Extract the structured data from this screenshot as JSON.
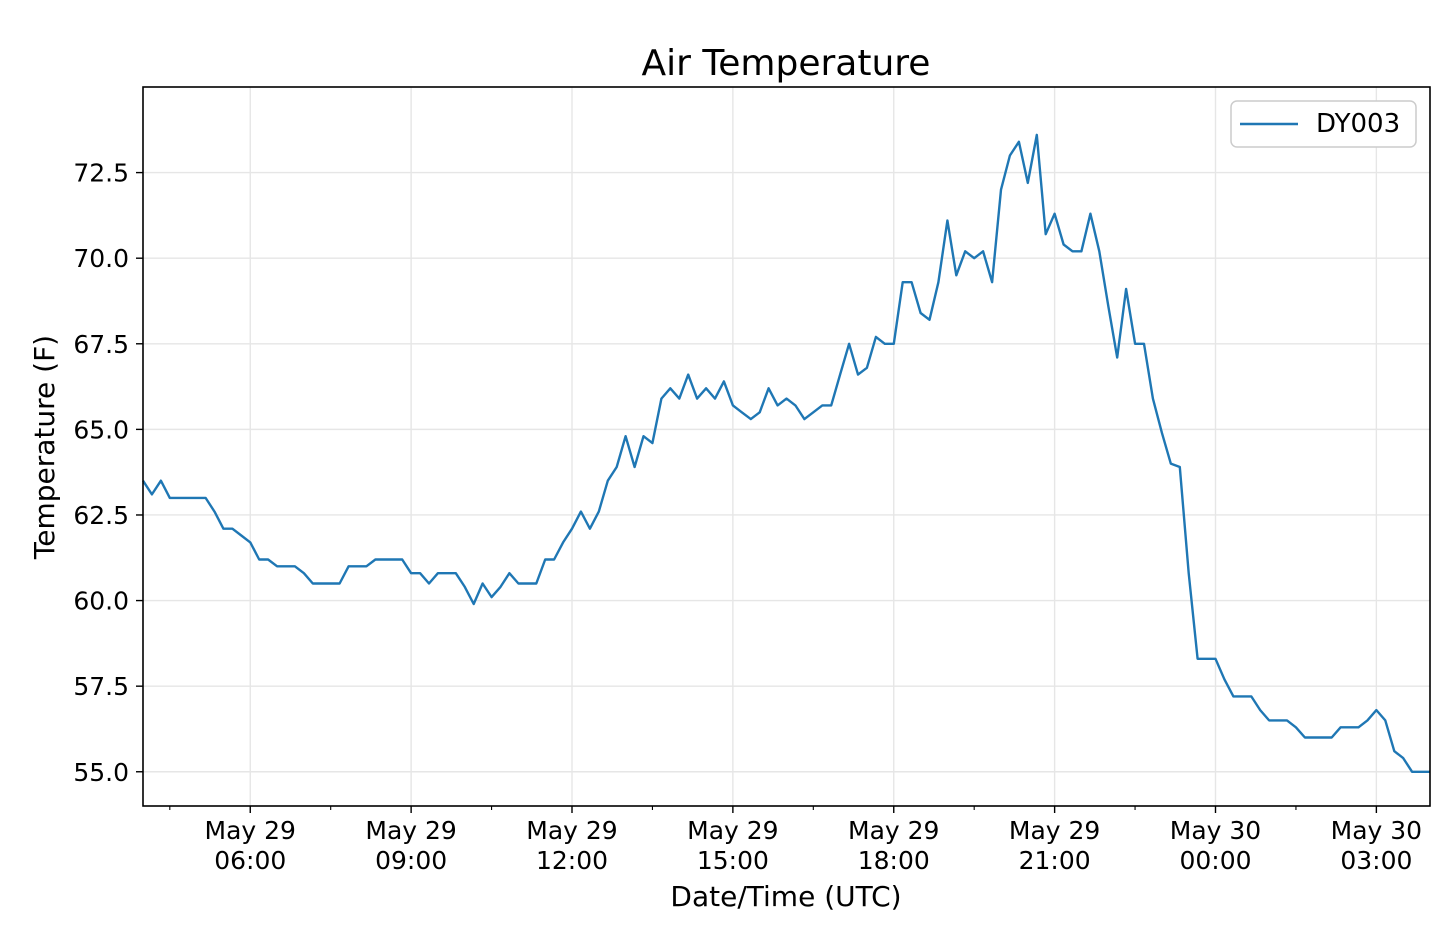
{
  "chart_data": {
    "type": "line",
    "title": "Air Temperature",
    "xlabel": "Date/Time (UTC)",
    "ylabel": "Temperature (F)",
    "ylim": [
      54.0,
      75.0
    ],
    "xlim": [
      "2021-05-29 04:00",
      "2021-05-30 04:00"
    ],
    "grid": true,
    "legend_position": "top-right",
    "series_color": "#1f77b4",
    "yticks": [
      "55.0",
      "57.5",
      "60.0",
      "62.5",
      "65.0",
      "67.5",
      "70.0",
      "72.5"
    ],
    "xticks": [
      {
        "t": "2021-05-29 06:00",
        "line1": "May 29",
        "line2": "06:00"
      },
      {
        "t": "2021-05-29 09:00",
        "line1": "May 29",
        "line2": "09:00"
      },
      {
        "t": "2021-05-29 12:00",
        "line1": "May 29",
        "line2": "12:00"
      },
      {
        "t": "2021-05-29 15:00",
        "line1": "May 29",
        "line2": "15:00"
      },
      {
        "t": "2021-05-29 18:00",
        "line1": "May 29",
        "line2": "18:00"
      },
      {
        "t": "2021-05-29 21:00",
        "line1": "May 29",
        "line2": "21:00"
      },
      {
        "t": "2021-05-30 00:00",
        "line1": "May 30",
        "line2": "00:00"
      },
      {
        "t": "2021-05-30 03:00",
        "line1": "May 30",
        "line2": "03:00"
      }
    ],
    "series": [
      {
        "name": "DY003",
        "x": [
          "2021-05-29 04:00",
          "2021-05-29 04:10",
          "2021-05-29 04:20",
          "2021-05-29 04:30",
          "2021-05-29 04:40",
          "2021-05-29 04:50",
          "2021-05-29 05:00",
          "2021-05-29 05:10",
          "2021-05-29 05:20",
          "2021-05-29 05:30",
          "2021-05-29 05:40",
          "2021-05-29 05:50",
          "2021-05-29 06:00",
          "2021-05-29 06:10",
          "2021-05-29 06:20",
          "2021-05-29 06:30",
          "2021-05-29 06:40",
          "2021-05-29 06:50",
          "2021-05-29 07:00",
          "2021-05-29 07:10",
          "2021-05-29 07:20",
          "2021-05-29 07:30",
          "2021-05-29 07:40",
          "2021-05-29 07:50",
          "2021-05-29 08:00",
          "2021-05-29 08:10",
          "2021-05-29 08:20",
          "2021-05-29 08:30",
          "2021-05-29 08:40",
          "2021-05-29 08:50",
          "2021-05-29 09:00",
          "2021-05-29 09:10",
          "2021-05-29 09:20",
          "2021-05-29 09:30",
          "2021-05-29 09:40",
          "2021-05-29 09:50",
          "2021-05-29 10:00",
          "2021-05-29 10:10",
          "2021-05-29 10:20",
          "2021-05-29 10:30",
          "2021-05-29 10:40",
          "2021-05-29 10:50",
          "2021-05-29 11:00",
          "2021-05-29 11:10",
          "2021-05-29 11:20",
          "2021-05-29 11:30",
          "2021-05-29 11:40",
          "2021-05-29 11:50",
          "2021-05-29 12:00",
          "2021-05-29 12:10",
          "2021-05-29 12:20",
          "2021-05-29 12:30",
          "2021-05-29 12:40",
          "2021-05-29 12:50",
          "2021-05-29 13:00",
          "2021-05-29 13:10",
          "2021-05-29 13:20",
          "2021-05-29 13:30",
          "2021-05-29 13:40",
          "2021-05-29 13:50",
          "2021-05-29 14:00",
          "2021-05-29 14:10",
          "2021-05-29 14:20",
          "2021-05-29 14:30",
          "2021-05-29 14:40",
          "2021-05-29 14:50",
          "2021-05-29 15:00",
          "2021-05-29 15:10",
          "2021-05-29 15:20",
          "2021-05-29 15:30",
          "2021-05-29 15:40",
          "2021-05-29 15:50",
          "2021-05-29 16:00",
          "2021-05-29 16:10",
          "2021-05-29 16:20",
          "2021-05-29 16:30",
          "2021-05-29 16:40",
          "2021-05-29 16:50",
          "2021-05-29 17:00",
          "2021-05-29 17:10",
          "2021-05-29 17:20",
          "2021-05-29 17:30",
          "2021-05-29 17:40",
          "2021-05-29 17:50",
          "2021-05-29 18:00",
          "2021-05-29 18:10",
          "2021-05-29 18:20",
          "2021-05-29 18:30",
          "2021-05-29 18:40",
          "2021-05-29 18:50",
          "2021-05-29 19:00",
          "2021-05-29 19:10",
          "2021-05-29 19:20",
          "2021-05-29 19:30",
          "2021-05-29 19:40",
          "2021-05-29 19:50",
          "2021-05-29 20:00",
          "2021-05-29 20:10",
          "2021-05-29 20:20",
          "2021-05-29 20:30",
          "2021-05-29 20:40",
          "2021-05-29 20:50",
          "2021-05-29 21:00",
          "2021-05-29 21:10",
          "2021-05-29 21:20",
          "2021-05-29 21:30",
          "2021-05-29 21:40",
          "2021-05-29 21:50",
          "2021-05-29 22:00",
          "2021-05-29 22:10",
          "2021-05-29 22:20",
          "2021-05-29 22:30",
          "2021-05-29 22:40",
          "2021-05-29 22:50",
          "2021-05-29 23:00",
          "2021-05-29 23:10",
          "2021-05-29 23:20",
          "2021-05-29 23:30",
          "2021-05-29 23:40",
          "2021-05-29 23:50",
          "2021-05-30 00:00",
          "2021-05-30 00:10",
          "2021-05-30 00:20",
          "2021-05-30 00:30",
          "2021-05-30 00:40",
          "2021-05-30 00:50",
          "2021-05-30 01:00",
          "2021-05-30 01:10",
          "2021-05-30 01:20",
          "2021-05-30 01:30",
          "2021-05-30 01:40",
          "2021-05-30 01:50",
          "2021-05-30 02:00",
          "2021-05-30 02:10",
          "2021-05-30 02:20",
          "2021-05-30 02:30",
          "2021-05-30 02:40",
          "2021-05-30 02:50",
          "2021-05-30 03:00",
          "2021-05-30 03:10",
          "2021-05-30 03:20",
          "2021-05-30 03:30",
          "2021-05-30 03:40",
          "2021-05-30 03:50",
          "2021-05-30 04:00"
        ],
        "y": [
          63.5,
          63.1,
          63.5,
          63.0,
          63.0,
          63.0,
          63.0,
          63.0,
          62.6,
          62.1,
          62.1,
          61.9,
          61.7,
          61.2,
          61.2,
          61.0,
          61.0,
          61.0,
          60.8,
          60.5,
          60.5,
          60.5,
          60.5,
          61.0,
          61.0,
          61.0,
          61.2,
          61.2,
          61.2,
          61.2,
          60.8,
          60.8,
          60.5,
          60.8,
          60.8,
          60.8,
          60.4,
          59.9,
          60.5,
          60.1,
          60.4,
          60.8,
          60.5,
          60.5,
          60.5,
          61.2,
          61.2,
          61.7,
          62.1,
          62.6,
          62.1,
          62.6,
          63.5,
          63.9,
          64.8,
          63.9,
          64.8,
          64.6,
          65.9,
          66.2,
          65.9,
          66.6,
          65.9,
          66.2,
          65.9,
          66.4,
          65.7,
          65.5,
          65.3,
          65.5,
          66.2,
          65.7,
          65.9,
          65.7,
          65.3,
          65.5,
          65.7,
          65.7,
          66.6,
          67.5,
          66.6,
          66.8,
          67.7,
          67.5,
          67.5,
          69.3,
          69.3,
          68.4,
          68.2,
          69.3,
          71.1,
          69.5,
          70.2,
          70.0,
          70.2,
          69.3,
          72.0,
          73.0,
          73.4,
          72.2,
          73.6,
          70.7,
          71.3,
          70.4,
          70.2,
          70.2,
          71.3,
          70.2,
          68.6,
          67.1,
          69.1,
          67.5,
          67.5,
          65.9,
          64.9,
          64.0,
          63.9,
          60.8,
          58.3,
          58.3,
          58.3,
          57.7,
          57.2,
          57.2,
          57.2,
          56.8,
          56.5,
          56.5,
          56.5,
          56.3,
          56.0,
          56.0,
          56.0,
          56.0,
          56.3,
          56.3,
          56.3,
          56.5,
          56.8,
          56.5,
          55.6,
          55.4,
          55.0,
          55.0,
          55.0
        ]
      }
    ]
  }
}
